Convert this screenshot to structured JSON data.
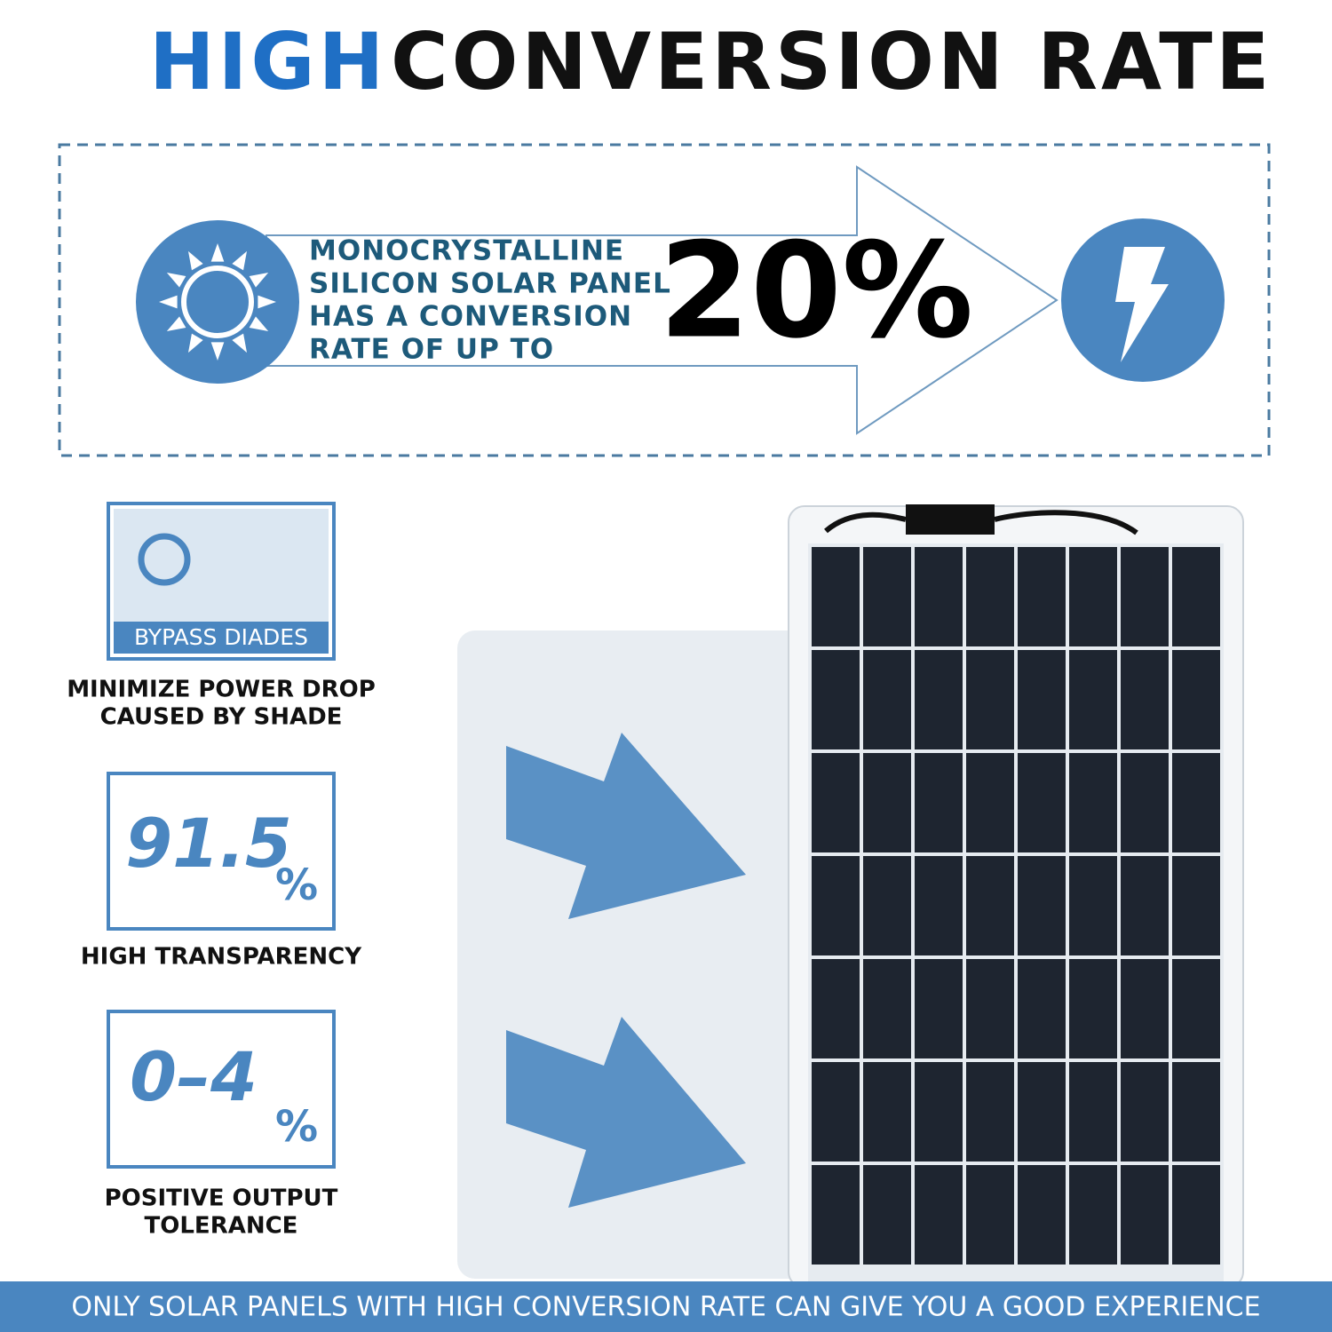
{
  "header": {
    "title_highlight": "HIGH",
    "title_rest": "CONVERSION RATE"
  },
  "banner": {
    "lines": [
      "MONOCRYSTALLINE",
      "SILICON SOLAR PANEL",
      "HAS A CONVERSION",
      "RATE OF UP TO"
    ],
    "rate": "20%"
  },
  "features": [
    {
      "icon_label": "BYPASS DIADES",
      "caption": [
        "MINIMIZE POWER DROP",
        "CAUSED BY SHADE"
      ]
    },
    {
      "icon_value": "91.5",
      "icon_unit": "%",
      "caption": [
        "HIGH TRANSPARENCY"
      ]
    },
    {
      "icon_value": "0–4",
      "icon_unit": "%",
      "caption": [
        "POSITIVE OUTPUT",
        "TOLERANCE"
      ]
    }
  ],
  "footer": {
    "text": "ONLY SOLAR PANELS WITH HIGH CONVERSION RATE CAN GIVE YOU A GOOD EXPERIENCE"
  }
}
